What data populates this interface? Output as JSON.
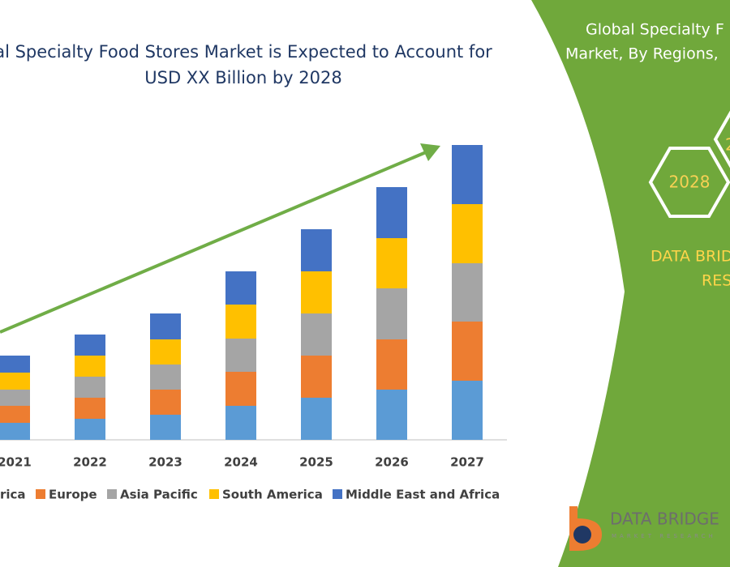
{
  "chart_data": {
    "type": "bar",
    "stacked": true,
    "title": [
      "al Specialty Food Stores Market is Expected to Account for",
      "USD XX Billion by 2028"
    ],
    "categories": [
      "2021",
      "2022",
      "2023",
      "2024",
      "2025",
      "2026",
      "2027"
    ],
    "series": [
      {
        "name": "rica",
        "color": "#5b9bd5",
        "values": [
          21,
          26,
          31,
          42,
          52,
          62,
          73
        ]
      },
      {
        "name": "Europe",
        "color": "#ed7d31",
        "values": [
          21,
          26,
          31,
          42,
          52,
          62,
          73
        ]
      },
      {
        "name": "Asia Pacific",
        "color": "#a5a5a5",
        "values": [
          20,
          26,
          31,
          41,
          52,
          63,
          72
        ]
      },
      {
        "name": "South America",
        "color": "#ffc000",
        "values": [
          21,
          26,
          31,
          42,
          52,
          62,
          73
        ]
      },
      {
        "name": "Middle East and Africa",
        "color": "#4472c4",
        "values": [
          21,
          26,
          32,
          41,
          52,
          63,
          73
        ]
      }
    ]
  },
  "panel": {
    "title": [
      "Global Specialty F",
      "Market, By Regions,"
    ],
    "hex_left": "2028",
    "hex_right": "2",
    "brand": [
      "DATA BRID",
      "RES"
    ]
  },
  "logo": {
    "name": "DATA BRIDGE",
    "tagline": "MARKET RESEARCH"
  }
}
